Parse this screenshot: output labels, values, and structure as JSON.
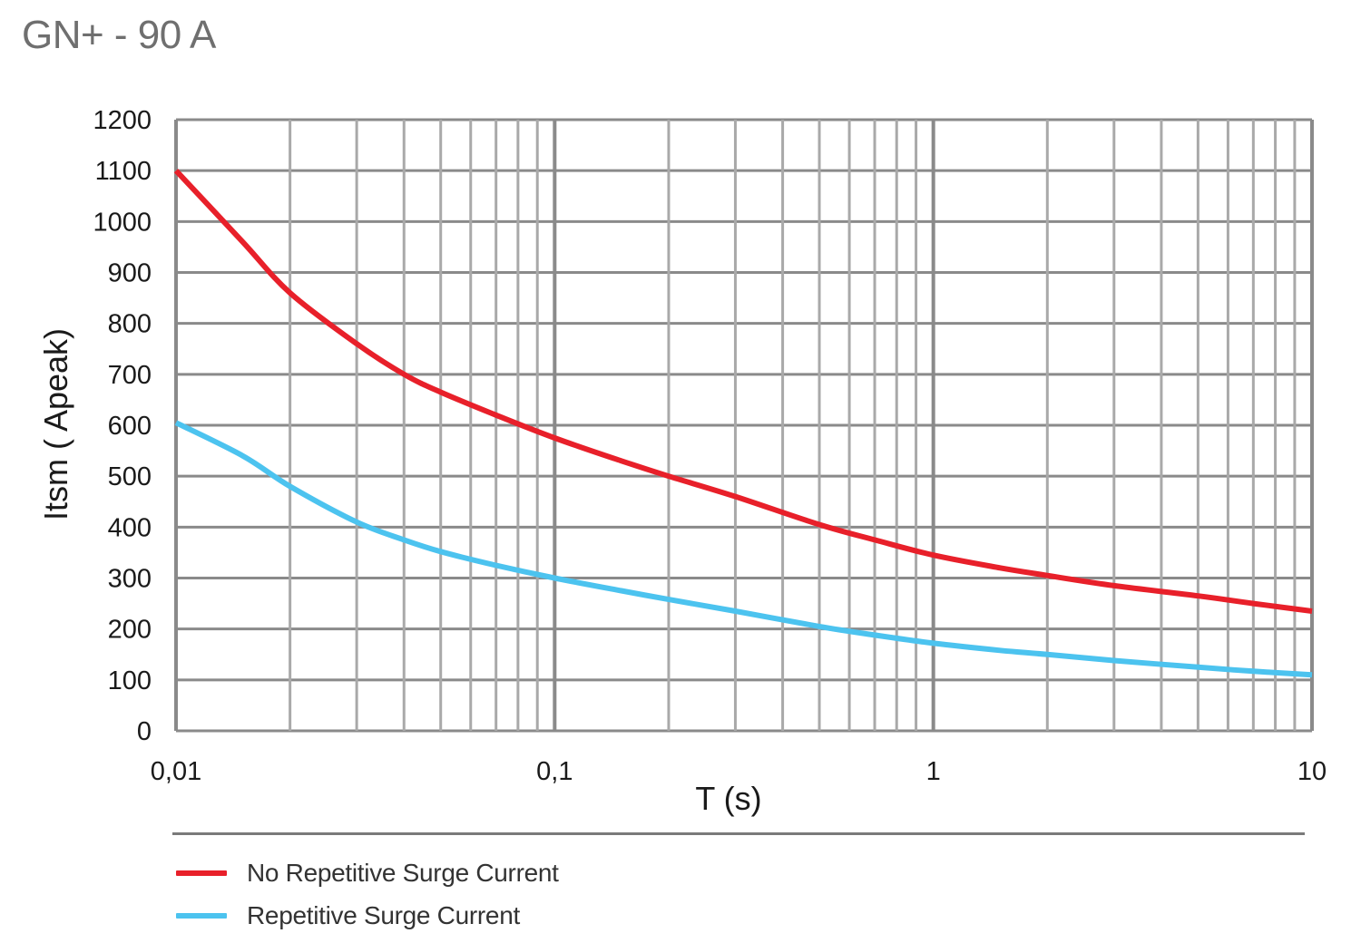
{
  "title": "GN+ - 90 A",
  "chart_data": {
    "type": "line",
    "title": "GN+ - 90 A",
    "xlabel": "T (s)",
    "ylabel": "Itsm ( Apeak)",
    "xscale": "log",
    "xlim": [
      0.01,
      10
    ],
    "ylim": [
      0,
      1200
    ],
    "x_ticks": [
      0.01,
      0.1,
      1,
      10
    ],
    "x_tick_labels": [
      "0,01",
      "0,1",
      "1",
      "10"
    ],
    "y_ticks": [
      0,
      100,
      200,
      300,
      400,
      500,
      600,
      700,
      800,
      900,
      1000,
      1100,
      1200
    ],
    "y_tick_labels": [
      "0",
      "100",
      "200",
      "300",
      "400",
      "500",
      "600",
      "700",
      "800",
      "900",
      "1000",
      "1100",
      "1200"
    ],
    "grid": true,
    "legend_position": "bottom",
    "series": [
      {
        "name": "No Repetitive Surge Current",
        "color": "#e8202a",
        "x": [
          0.01,
          0.015,
          0.02,
          0.03,
          0.04,
          0.05,
          0.07,
          0.1,
          0.15,
          0.2,
          0.3,
          0.5,
          0.7,
          1,
          1.5,
          2,
          3,
          5,
          7,
          10
        ],
        "y": [
          1100,
          960,
          860,
          760,
          700,
          665,
          620,
          575,
          530,
          500,
          460,
          405,
          375,
          345,
          320,
          305,
          285,
          265,
          250,
          235
        ]
      },
      {
        "name": "Repetitive Surge Current",
        "color": "#4cc3ef",
        "x": [
          0.01,
          0.015,
          0.02,
          0.03,
          0.04,
          0.05,
          0.07,
          0.1,
          0.15,
          0.2,
          0.3,
          0.5,
          0.7,
          1,
          1.5,
          2,
          3,
          5,
          7,
          10
        ],
        "y": [
          605,
          540,
          480,
          410,
          375,
          352,
          325,
          300,
          275,
          258,
          235,
          205,
          188,
          172,
          158,
          150,
          138,
          125,
          117,
          110
        ]
      }
    ]
  }
}
